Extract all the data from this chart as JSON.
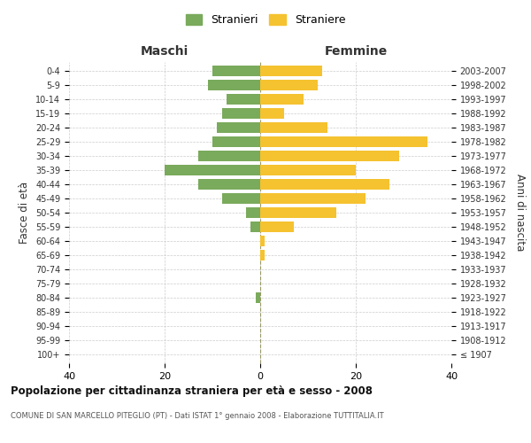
{
  "age_groups": [
    "100+",
    "95-99",
    "90-94",
    "85-89",
    "80-84",
    "75-79",
    "70-74",
    "65-69",
    "60-64",
    "55-59",
    "50-54",
    "45-49",
    "40-44",
    "35-39",
    "30-34",
    "25-29",
    "20-24",
    "15-19",
    "10-14",
    "5-9",
    "0-4"
  ],
  "birth_years": [
    "≤ 1907",
    "1908-1912",
    "1913-1917",
    "1918-1922",
    "1923-1927",
    "1928-1932",
    "1933-1937",
    "1938-1942",
    "1943-1947",
    "1948-1952",
    "1953-1957",
    "1958-1962",
    "1963-1967",
    "1968-1972",
    "1973-1977",
    "1978-1982",
    "1983-1987",
    "1988-1992",
    "1993-1997",
    "1998-2002",
    "2003-2007"
  ],
  "maschi": [
    0,
    0,
    0,
    0,
    1,
    0,
    0,
    0,
    0,
    2,
    3,
    8,
    13,
    20,
    13,
    10,
    9,
    8,
    7,
    11,
    10
  ],
  "femmine": [
    0,
    0,
    0,
    0,
    0,
    0,
    0,
    1,
    1,
    7,
    16,
    22,
    27,
    20,
    29,
    35,
    14,
    5,
    9,
    12,
    13
  ],
  "color_maschi": "#7aaa5c",
  "color_femmine": "#f5c230",
  "background_color": "#ffffff",
  "grid_color": "#cccccc",
  "title": "Popolazione per cittadinanza straniera per età e sesso - 2008",
  "subtitle": "COMUNE DI SAN MARCELLO PITEGLIO (PT) - Dati ISTAT 1° gennaio 2008 - Elaborazione TUTTITALIA.IT",
  "xlabel_left": "Maschi",
  "xlabel_right": "Femmine",
  "ylabel_left": "Fasce di età",
  "ylabel_right": "Anni di nascita",
  "legend_stranieri": "Stranieri",
  "legend_straniere": "Straniere",
  "xlim": 40,
  "centerline_color": "#999966"
}
